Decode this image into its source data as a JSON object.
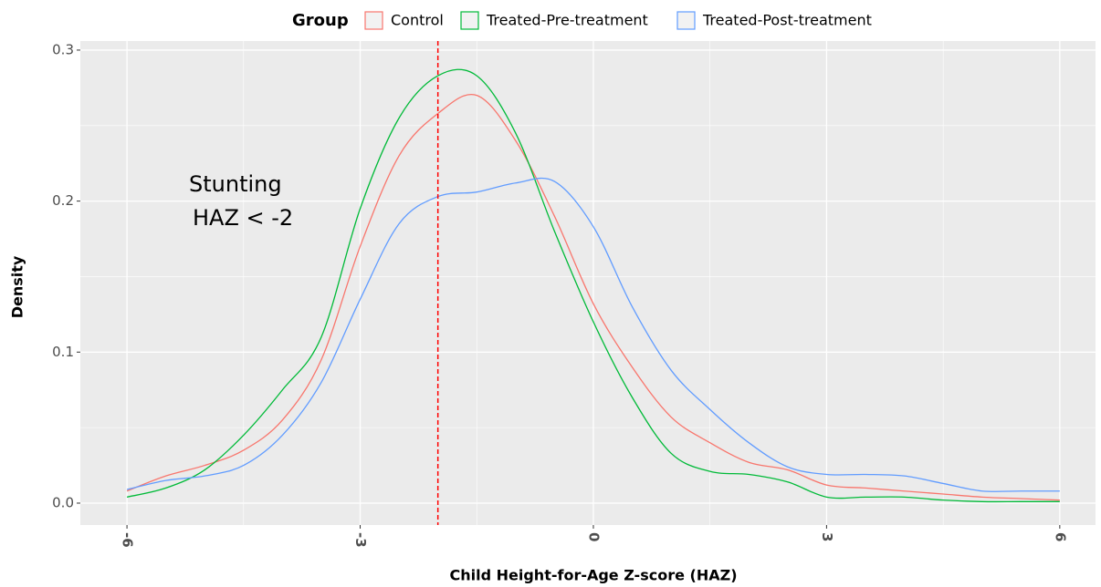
{
  "chart_data": {
    "type": "density",
    "x_label": "Child Height-for-Age Z-score (HAZ)",
    "y_label": "Density",
    "legend_title": "Group",
    "legend_position": "top",
    "annotation": [
      "Stunting",
      "HAZ < -2"
    ],
    "annotation_color": "#ff0000",
    "vline": -2,
    "vline_color": "#ff0000",
    "grid": true,
    "xlim": [
      -6.6,
      6.46
    ],
    "ylim": [
      -0.0145,
      0.306
    ],
    "xticks": [
      -6,
      -3,
      0,
      3,
      6
    ],
    "yticks": [
      {
        "value": 0,
        "label": "0.0"
      },
      0.1,
      0.2,
      0.3
    ],
    "x_minor_ticks": [
      -4.5,
      -1.5,
      1.5,
      4.5
    ],
    "y_minor_ticks": [
      0.05,
      0.15,
      0.25
    ],
    "x": [
      -6,
      -5.5,
      -5,
      -4.5,
      -4,
      -3.5,
      -3,
      -2.5,
      -2,
      -1.5,
      -1,
      -0.5,
      0,
      0.5,
      1,
      1.5,
      2,
      2.5,
      3,
      3.5,
      4,
      4.5,
      5,
      5.5,
      6
    ],
    "series": [
      {
        "name": "Control",
        "color": "#F8766D",
        "values": [
          0.008,
          0.018,
          0.025,
          0.035,
          0.055,
          0.095,
          0.17,
          0.23,
          0.258,
          0.27,
          0.24,
          0.19,
          0.132,
          0.09,
          0.057,
          0.04,
          0.027,
          0.022,
          0.012,
          0.01,
          0.008,
          0.006,
          0.004,
          0.003,
          0.002
        ]
      },
      {
        "name": "Treated-Pre-treatment",
        "color": "#00BA38",
        "values": [
          0.004,
          0.01,
          0.022,
          0.045,
          0.075,
          0.11,
          0.195,
          0.255,
          0.283,
          0.283,
          0.245,
          0.18,
          0.12,
          0.07,
          0.033,
          0.021,
          0.019,
          0.014,
          0.004,
          0.004,
          0.004,
          0.002,
          0.001,
          0.001,
          0.001
        ]
      },
      {
        "name": "Treated-Post-treatment",
        "color": "#619CFF",
        "values": [
          0.009,
          0.015,
          0.018,
          0.025,
          0.045,
          0.08,
          0.135,
          0.185,
          0.203,
          0.206,
          0.212,
          0.213,
          0.183,
          0.13,
          0.088,
          0.062,
          0.04,
          0.024,
          0.019,
          0.019,
          0.018,
          0.013,
          0.008,
          0.008,
          0.008
        ]
      }
    ]
  }
}
